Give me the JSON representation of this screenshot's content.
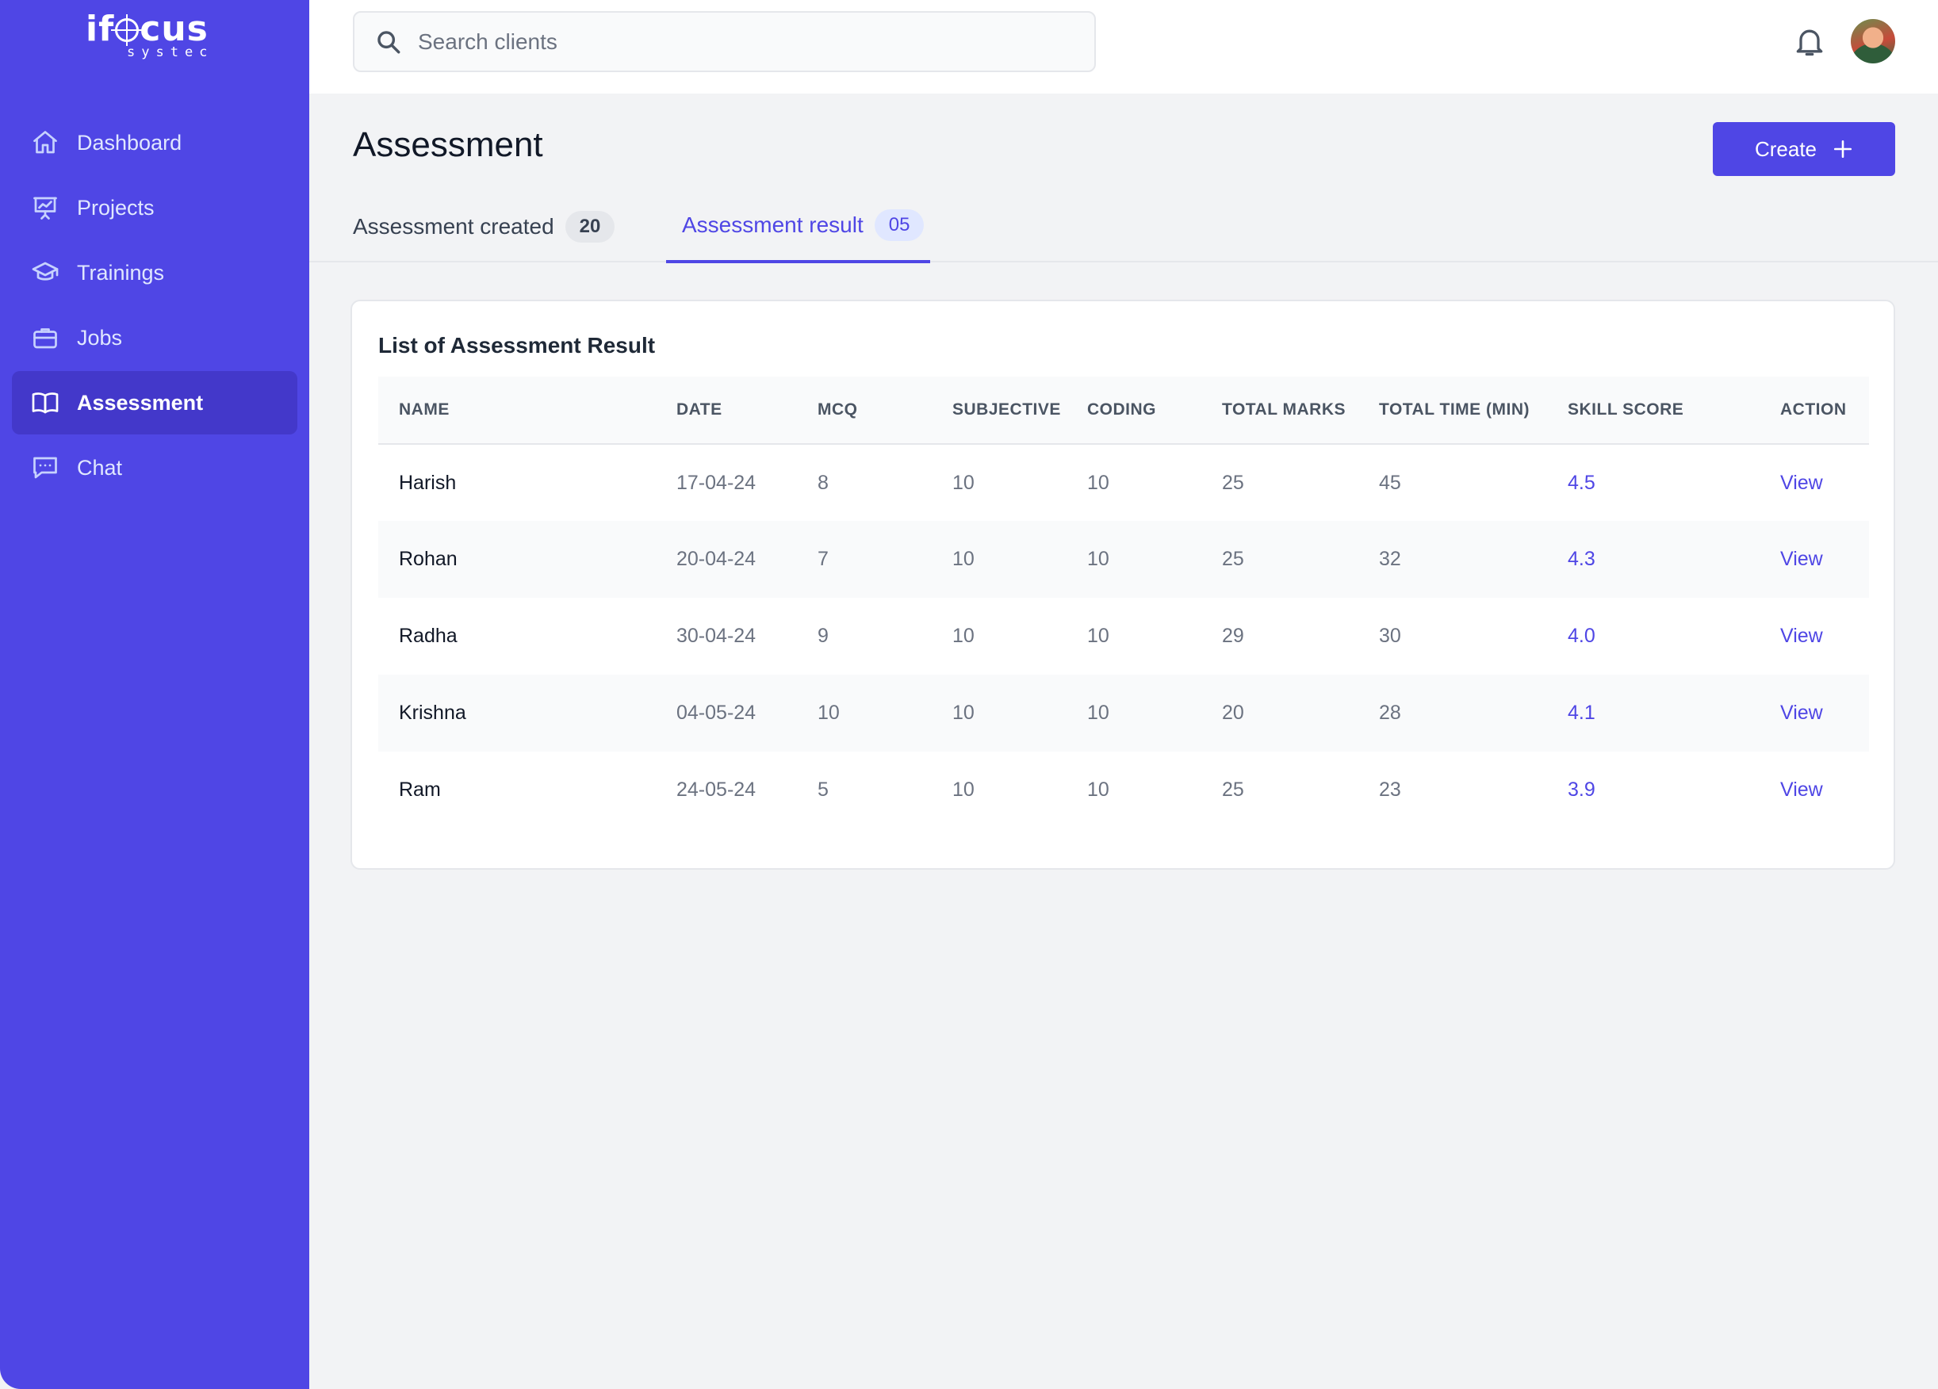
{
  "brand": {
    "logo_main": "ifocus",
    "logo_sub": "systec"
  },
  "sidebar": {
    "items": [
      {
        "label": "Dashboard",
        "icon": "home-icon",
        "active": false
      },
      {
        "label": "Projects",
        "icon": "presentation-chart-icon",
        "active": false
      },
      {
        "label": "Trainings",
        "icon": "graduation-cap-icon",
        "active": false
      },
      {
        "label": "Jobs",
        "icon": "briefcase-icon",
        "active": false
      },
      {
        "label": "Assessment",
        "icon": "open-book-icon",
        "active": true
      },
      {
        "label": "Chat",
        "icon": "chat-bubble-icon",
        "active": false
      }
    ]
  },
  "topbar": {
    "search_placeholder": "Search clients",
    "icons": [
      "search-icon",
      "bell-icon",
      "avatar"
    ]
  },
  "page": {
    "title": "Assessment",
    "create_label": "Create"
  },
  "tabs": [
    {
      "label": "Assessment created",
      "count": "20",
      "active": false
    },
    {
      "label": "Assessment result",
      "count": "05",
      "active": true
    }
  ],
  "card": {
    "title": "List of Assessment Result",
    "columns": [
      "NAME",
      "DATE",
      "MCQ",
      "SUBJECTIVE",
      "CODING",
      "TOTAL MARKS",
      "TOTAL TIME (MIN)",
      "SKILL SCORE",
      "ACTION"
    ],
    "rows": [
      {
        "name": "Harish",
        "date": "17-04-24",
        "mcq": "8",
        "subjective": "10",
        "coding": "10",
        "total_marks": "25",
        "total_time": "45",
        "skill_score": "4.5",
        "action": "View"
      },
      {
        "name": "Rohan",
        "date": "20-04-24",
        "mcq": "7",
        "subjective": "10",
        "coding": "10",
        "total_marks": "25",
        "total_time": "32",
        "skill_score": "4.3",
        "action": "View"
      },
      {
        "name": "Radha",
        "date": "30-04-24",
        "mcq": "9",
        "subjective": "10",
        "coding": "10",
        "total_marks": "29",
        "total_time": "30",
        "skill_score": "4.0",
        "action": "View"
      },
      {
        "name": "Krishna",
        "date": "04-05-24",
        "mcq": "10",
        "subjective": "10",
        "coding": "10",
        "total_marks": "20",
        "total_time": "28",
        "skill_score": "4.1",
        "action": "View"
      },
      {
        "name": "Ram",
        "date": "24-05-24",
        "mcq": "5",
        "subjective": "10",
        "coding": "10",
        "total_marks": "25",
        "total_time": "23",
        "skill_score": "3.9",
        "action": "View"
      }
    ]
  },
  "colors": {
    "primary": "#4f46e5",
    "primary_dark": "#4338ca",
    "background": "#f2f3f5"
  }
}
